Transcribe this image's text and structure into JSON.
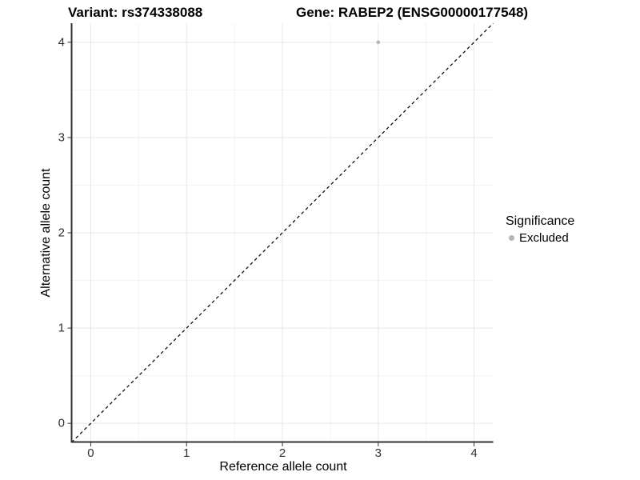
{
  "titles": {
    "variant": "Variant: rs374338088",
    "gene": "Gene: RABEP2 (ENSG00000177548)"
  },
  "legend": {
    "title": "Significance",
    "items": [
      {
        "label": "Excluded",
        "color": "#b5b5b5"
      }
    ]
  },
  "chart_data": {
    "type": "scatter",
    "title": "Variant: rs374338088    Gene: RABEP2 (ENSG00000177548)",
    "xlabel": "Reference allele count",
    "ylabel": "Alternative allele count",
    "xlim": [
      -0.2,
      4.2
    ],
    "ylim": [
      -0.2,
      4.2
    ],
    "xticks": [
      0,
      1,
      2,
      3,
      4
    ],
    "yticks": [
      0,
      1,
      2,
      3,
      4
    ],
    "x_minor_ticks": [
      0.5,
      1.5,
      2.5,
      3.5
    ],
    "y_minor_ticks": [
      0.5,
      1.5,
      2.5,
      3.5
    ],
    "grid": "major+minor",
    "legend_position": "right",
    "series": [
      {
        "name": "Excluded",
        "color": "#b5b5b5",
        "points": [
          {
            "x": 3,
            "y": 4
          }
        ]
      }
    ],
    "reference_line": {
      "type": "identity",
      "style": "dashed",
      "color": "#000000",
      "from": [
        -0.2,
        -0.2
      ],
      "to": [
        4.2,
        4.2
      ]
    }
  },
  "colors": {
    "background": "#ffffff",
    "grid_major": "#e6e6e6",
    "grid_minor": "#f2f2f2",
    "axis": "#333333",
    "tick_text": "#303030",
    "title_text": "#000000",
    "point": "#b5b5b5"
  }
}
